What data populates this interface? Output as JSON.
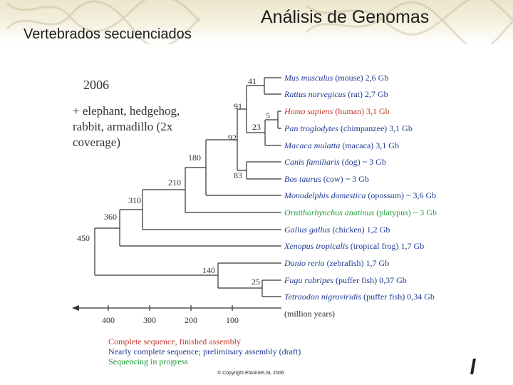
{
  "header": {
    "title": "Análisis de Genomas",
    "subtitle": "Vertebrados secuenciados"
  },
  "colors": {
    "complete": "#c0392b",
    "draft": "#1f3a93",
    "progress": "#1e9e3a",
    "line": "#333333",
    "text": "#333333"
  },
  "year": "2006",
  "note_lines": [
    "+ elephant, hedgehog,",
    "rabbit, armadillo (2x",
    "coverage)"
  ],
  "species": [
    {
      "latin": "Mus musculus",
      "rest": "(mouse) 2,6 Gb",
      "status": "draft"
    },
    {
      "latin": "Rattus norvegicus",
      "rest": "(rat) 2,7 Gb",
      "status": "draft"
    },
    {
      "latin": "Homo sapiens",
      "rest": "(human) 3,1 Gb",
      "status": "complete"
    },
    {
      "latin": "Pan troglodytes",
      "rest": "(chimpanzee) 3,1 Gb",
      "status": "draft"
    },
    {
      "latin": "Macaca mulatta",
      "rest": "(macaca) 3,1 Gb",
      "status": "draft"
    },
    {
      "latin": "Canis familiaris",
      "rest": "(dog) ~ 3 Gb",
      "status": "draft"
    },
    {
      "latin": "Bos taurus",
      "rest": "(cow) ~ 3 Gb",
      "status": "draft"
    },
    {
      "latin": "Monodelphis domestica",
      "rest": "(opossum) ~ 3,6 Gb",
      "status": "draft"
    },
    {
      "latin": "Ornithorhynchus anatinus",
      "rest": "(platypus) ~ 3 Gb",
      "status": "progress"
    },
    {
      "latin": "Gallus gallus",
      "rest": "(chicken) 1,2 Gb",
      "status": "draft"
    },
    {
      "latin": "Xenopus tropicalis",
      "rest": "(tropical frog) 1,7 Gb",
      "status": "draft"
    },
    {
      "latin": "Danio rerio",
      "rest": "(zebrafish) 1,7 Gb",
      "status": "draft"
    },
    {
      "latin": "Fugu rubripes",
      "rest": "(puffer fish) 0,37 Gb",
      "status": "draft"
    },
    {
      "latin": "Tetraodon nigroviridis",
      "rest": "(puffer fish) 0,34 Gb",
      "status": "draft"
    }
  ],
  "node_labels": [
    "41",
    "5",
    "23",
    "91",
    "92",
    "83",
    "180",
    "210",
    "310",
    "360",
    "450",
    "140",
    "25"
  ],
  "axis": {
    "ticks": [
      "400",
      "300",
      "200",
      "100"
    ],
    "unit": "(million years)"
  },
  "legend": [
    {
      "text": "Complete sequence, finished assembly",
      "status": "complete"
    },
    {
      "text": "Nearly complete sequence; preliminary assembly (draft)",
      "status": "draft"
    },
    {
      "text": "Sequencing in progress",
      "status": "progress"
    }
  ],
  "copyright": "© Copyright Ebiointel,SL 2006"
}
